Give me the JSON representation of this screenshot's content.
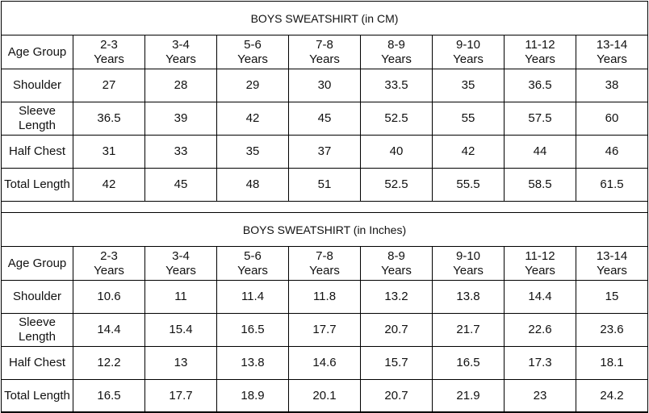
{
  "tables": [
    {
      "title": "BOYS SWEATSHIRT (in CM)",
      "header_label": "Age Group",
      "age_groups": [
        [
          "2-3",
          "Years"
        ],
        [
          "3-4",
          "Years"
        ],
        [
          "5-6",
          "Years"
        ],
        [
          "7-8",
          "Years"
        ],
        [
          "8-9",
          "Years"
        ],
        [
          "9-10",
          "Years"
        ],
        [
          "11-12",
          "Years"
        ],
        [
          "13-14",
          "Years"
        ]
      ],
      "rows": [
        {
          "label": "Shoulder",
          "values": [
            "27",
            "28",
            "29",
            "30",
            "33.5",
            "35",
            "36.5",
            "38"
          ]
        },
        {
          "label": "Sleeve Length",
          "values": [
            "36.5",
            "39",
            "42",
            "45",
            "52.5",
            "55",
            "57.5",
            "60"
          ]
        },
        {
          "label": "Half Chest",
          "values": [
            "31",
            "33",
            "35",
            "37",
            "40",
            "42",
            "44",
            "46"
          ]
        },
        {
          "label": "Total Length",
          "values": [
            "42",
            "45",
            "48",
            "51",
            "52.5",
            "55.5",
            "58.5",
            "61.5"
          ]
        }
      ]
    },
    {
      "title": "BOYS SWEATSHIRT (in Inches)",
      "header_label": "Age Group",
      "age_groups": [
        [
          "2-3",
          "Years"
        ],
        [
          "3-4",
          "Years"
        ],
        [
          "5-6",
          "Years"
        ],
        [
          "7-8",
          "Years"
        ],
        [
          "8-9",
          "Years"
        ],
        [
          "9-10",
          "Years"
        ],
        [
          "11-12",
          "Years"
        ],
        [
          "13-14",
          "Years"
        ]
      ],
      "rows": [
        {
          "label": "Shoulder",
          "values": [
            "10.6",
            "11",
            "11.4",
            "11.8",
            "13.2",
            "13.8",
            "14.4",
            "15"
          ]
        },
        {
          "label": "Sleeve Length",
          "values": [
            "14.4",
            "15.4",
            "16.5",
            "17.7",
            "20.7",
            "21.7",
            "22.6",
            "23.6"
          ]
        },
        {
          "label": "Half Chest",
          "values": [
            "12.2",
            "13",
            "13.8",
            "14.6",
            "15.7",
            "16.5",
            "17.3",
            "18.1"
          ]
        },
        {
          "label": "Total Length",
          "values": [
            "16.5",
            "17.7",
            "18.9",
            "20.1",
            "20.7",
            "21.9",
            "23",
            "24.2"
          ]
        }
      ]
    }
  ]
}
